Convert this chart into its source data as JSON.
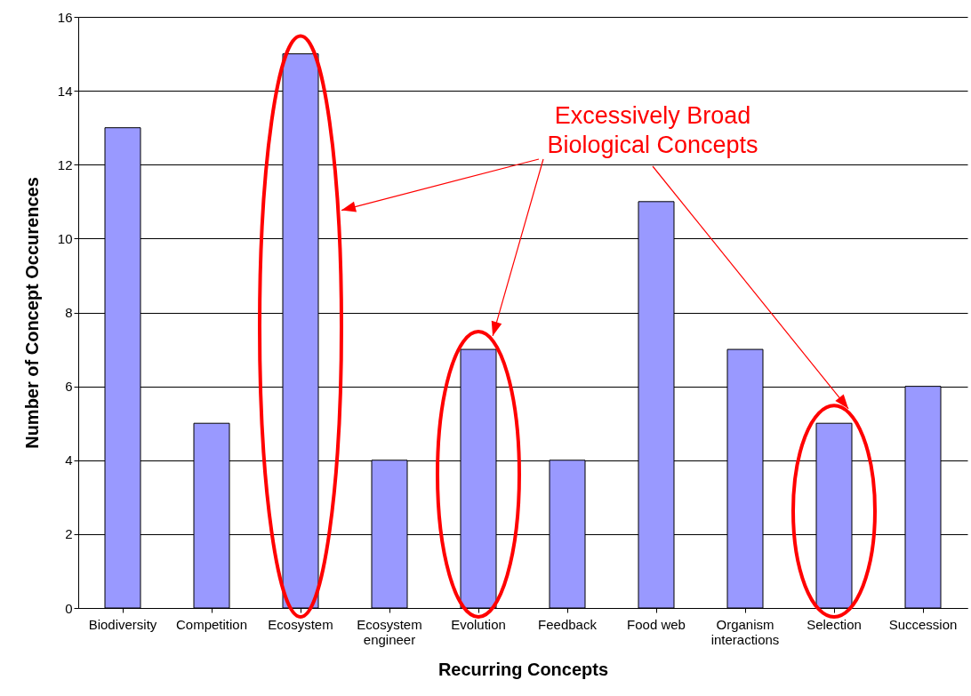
{
  "chart_data": {
    "type": "bar",
    "xlabel": "Recurring Concepts",
    "ylabel": "Number of Concept Occurences",
    "categories": [
      "Biodiversity",
      "Competition",
      "Ecosystem",
      "Ecosystem engineer",
      "Evolution",
      "Feedback",
      "Food web",
      "Organism interactions",
      "Selection",
      "Succession"
    ],
    "values": [
      13,
      5,
      15,
      4,
      7,
      4,
      11,
      7,
      5,
      6
    ],
    "color": "#9999ff",
    "ylim": [
      0,
      16
    ],
    "yticks": [
      0,
      2,
      4,
      6,
      8,
      10,
      12,
      14,
      16
    ],
    "grid": "y",
    "annotations": [
      "Excessively Broad Biological Concepts"
    ]
  }
}
